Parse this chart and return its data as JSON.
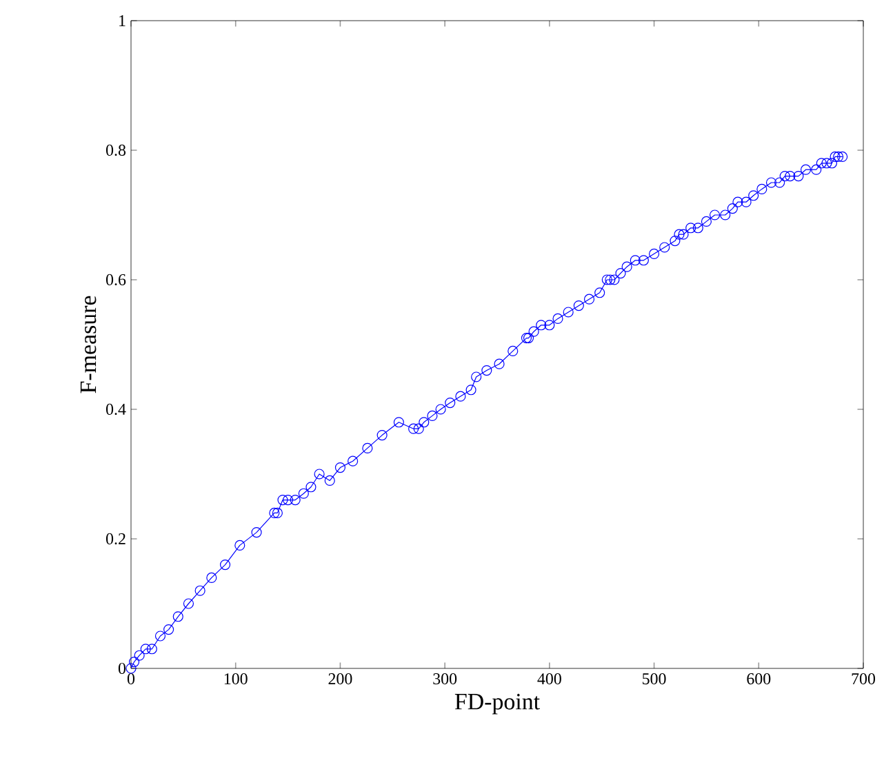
{
  "chart_data": {
    "type": "line",
    "xlabel": "FD-point",
    "ylabel": "F-measure",
    "xlim": [
      0,
      700
    ],
    "ylim": [
      0,
      1
    ],
    "xticks": [
      0,
      100,
      200,
      300,
      400,
      500,
      600,
      700
    ],
    "yticks": [
      0,
      0.2,
      0.4,
      0.6,
      0.8,
      1
    ],
    "marker": "circle",
    "line_style": "solid",
    "series": [
      {
        "color": "#0000ff",
        "x": [
          0,
          3,
          8,
          14,
          20,
          28,
          36,
          45,
          55,
          66,
          77,
          90,
          104,
          120,
          137,
          140,
          145,
          150,
          157,
          165,
          172,
          180,
          190,
          200,
          212,
          226,
          240,
          256,
          270,
          275,
          280,
          288,
          296,
          305,
          315,
          325,
          330,
          340,
          352,
          365,
          378,
          380,
          385,
          392,
          400,
          408,
          418,
          428,
          438,
          448,
          455,
          458,
          462,
          468,
          474,
          482,
          490,
          500,
          510,
          520,
          524,
          528,
          535,
          542,
          550,
          558,
          568,
          575,
          580,
          588,
          595,
          603,
          612,
          620,
          625,
          630,
          638,
          645,
          655,
          660,
          665,
          670,
          673,
          676,
          680
        ],
        "values": [
          0,
          0.01,
          0.02,
          0.03,
          0.03,
          0.05,
          0.06,
          0.08,
          0.1,
          0.12,
          0.14,
          0.16,
          0.19,
          0.21,
          0.24,
          0.24,
          0.26,
          0.26,
          0.26,
          0.27,
          0.28,
          0.3,
          0.29,
          0.31,
          0.32,
          0.34,
          0.36,
          0.38,
          0.37,
          0.37,
          0.38,
          0.39,
          0.4,
          0.41,
          0.42,
          0.43,
          0.45,
          0.46,
          0.47,
          0.49,
          0.51,
          0.51,
          0.52,
          0.53,
          0.53,
          0.54,
          0.55,
          0.56,
          0.57,
          0.58,
          0.6,
          0.6,
          0.6,
          0.61,
          0.62,
          0.63,
          0.63,
          0.64,
          0.65,
          0.66,
          0.67,
          0.67,
          0.68,
          0.68,
          0.69,
          0.7,
          0.7,
          0.71,
          0.72,
          0.72,
          0.73,
          0.74,
          0.75,
          0.75,
          0.76,
          0.76,
          0.76,
          0.77,
          0.77,
          0.78,
          0.78,
          0.78,
          0.79,
          0.79,
          0.79
        ]
      }
    ]
  }
}
